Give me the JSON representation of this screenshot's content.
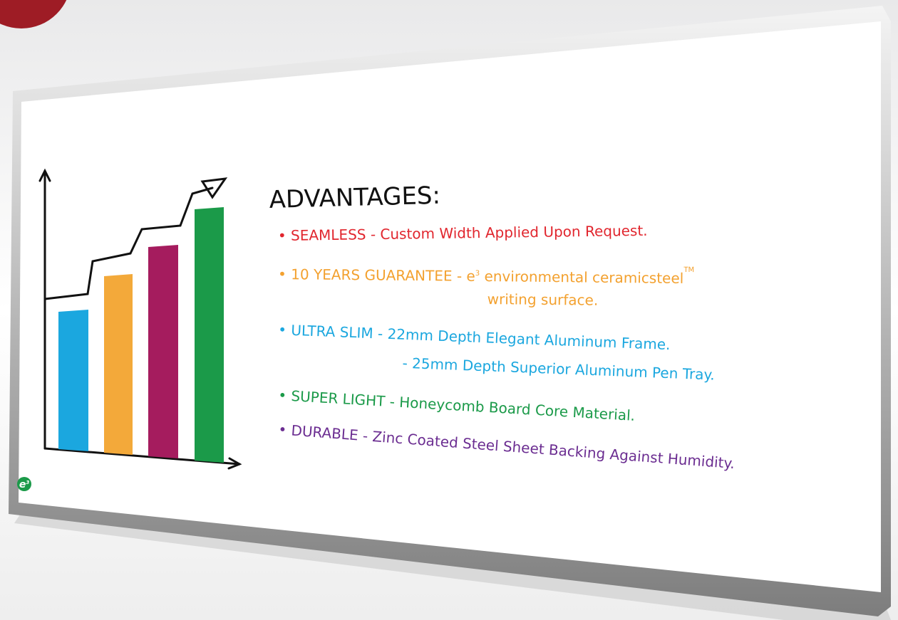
{
  "board": {
    "title": "ADVANTAGES:",
    "logo": {
      "letter": "e",
      "sup": "3"
    },
    "items": [
      {
        "color": "#e1262e",
        "line1": "SEAMLESS - Custom Width Applied Upon Request."
      },
      {
        "color": "#f3a12f",
        "line1": "10 YEARS GUARANTEE - e",
        "sup": "3",
        "line1b": " environmental ceramicsteel",
        "tm": "TM",
        "line2": "writing surface."
      },
      {
        "color": "#1ba7df",
        "line1": "ULTRA SLIM - 22mm Depth Elegant Aluminum Frame.",
        "line2": "- 25mm Depth Superior Aluminum Pen Tray."
      },
      {
        "color": "#1b9a49",
        "line1": "SUPER LIGHT - Honeycomb Board Core Material."
      },
      {
        "color": "#6b2d91",
        "line1": "DURABLE - Zinc Coated Steel Sheet Backing Against Humidity."
      }
    ]
  }
}
